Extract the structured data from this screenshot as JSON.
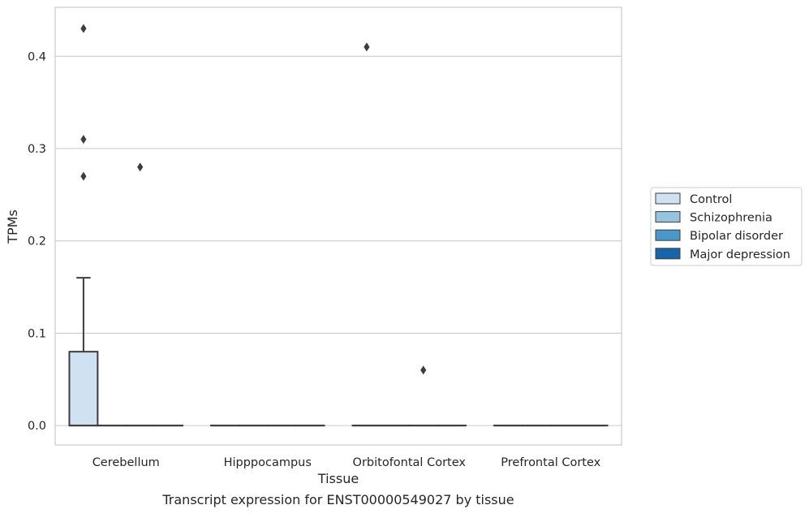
{
  "chart_data": {
    "type": "box",
    "title": "",
    "caption": "Transcript expression for ENST00000549027 by tissue",
    "xlabel": "Tissue",
    "ylabel": "TPMs",
    "ylim": [
      -0.021,
      0.453
    ],
    "yticks": [
      0.0,
      0.1,
      0.2,
      0.3,
      0.4
    ],
    "ytick_labels": [
      "0.0",
      "0.1",
      "0.2",
      "0.3",
      "0.4"
    ],
    "grid": "horizontal",
    "legend_position": "right",
    "categories": [
      "Cerebellum",
      "Hipppocampus",
      "Orbitofontal Cortex",
      "Prefrontal Cortex"
    ],
    "series": [
      {
        "name": "Control",
        "color": "#d0e1f2",
        "boxes": [
          {
            "q1": 0.0,
            "median": 0.0,
            "q3": 0.08,
            "whisker_low": 0.0,
            "whisker_high": 0.16,
            "outliers": [
              0.27,
              0.31,
              0.43
            ]
          },
          {
            "q1": 0.0,
            "median": 0.0,
            "q3": 0.0,
            "whisker_low": 0.0,
            "whisker_high": 0.0,
            "outliers": []
          },
          {
            "q1": 0.0,
            "median": 0.0,
            "q3": 0.0,
            "whisker_low": 0.0,
            "whisker_high": 0.0,
            "outliers": [
              0.41
            ]
          },
          {
            "q1": 0.0,
            "median": 0.0,
            "q3": 0.0,
            "whisker_low": 0.0,
            "whisker_high": 0.0,
            "outliers": []
          }
        ]
      },
      {
        "name": "Schizophrenia",
        "color": "#94c4df",
        "boxes": [
          {
            "q1": 0.0,
            "median": 0.0,
            "q3": 0.0,
            "whisker_low": 0.0,
            "whisker_high": 0.0,
            "outliers": []
          },
          {
            "q1": 0.0,
            "median": 0.0,
            "q3": 0.0,
            "whisker_low": 0.0,
            "whisker_high": 0.0,
            "outliers": []
          },
          {
            "q1": 0.0,
            "median": 0.0,
            "q3": 0.0,
            "whisker_low": 0.0,
            "whisker_high": 0.0,
            "outliers": []
          },
          {
            "q1": 0.0,
            "median": 0.0,
            "q3": 0.0,
            "whisker_low": 0.0,
            "whisker_high": 0.0,
            "outliers": []
          }
        ]
      },
      {
        "name": "Bipolar disorder",
        "color": "#4a98c9",
        "boxes": [
          {
            "q1": 0.0,
            "median": 0.0,
            "q3": 0.0,
            "whisker_low": 0.0,
            "whisker_high": 0.0,
            "outliers": [
              0.28
            ]
          },
          {
            "q1": 0.0,
            "median": 0.0,
            "q3": 0.0,
            "whisker_low": 0.0,
            "whisker_high": 0.0,
            "outliers": []
          },
          {
            "q1": 0.0,
            "median": 0.0,
            "q3": 0.0,
            "whisker_low": 0.0,
            "whisker_high": 0.0,
            "outliers": [
              0.06
            ]
          },
          {
            "q1": 0.0,
            "median": 0.0,
            "q3": 0.0,
            "whisker_low": 0.0,
            "whisker_high": 0.0,
            "outliers": []
          }
        ]
      },
      {
        "name": "Major depression",
        "color": "#1764ab",
        "boxes": [
          {
            "q1": 0.0,
            "median": 0.0,
            "q3": 0.0,
            "whisker_low": 0.0,
            "whisker_high": 0.0,
            "outliers": []
          },
          {
            "q1": 0.0,
            "median": 0.0,
            "q3": 0.0,
            "whisker_low": 0.0,
            "whisker_high": 0.0,
            "outliers": []
          },
          {
            "q1": 0.0,
            "median": 0.0,
            "q3": 0.0,
            "whisker_low": 0.0,
            "whisker_high": 0.0,
            "outliers": []
          },
          {
            "q1": 0.0,
            "median": 0.0,
            "q3": 0.0,
            "whisker_low": 0.0,
            "whisker_high": 0.0,
            "outliers": []
          }
        ]
      }
    ]
  }
}
